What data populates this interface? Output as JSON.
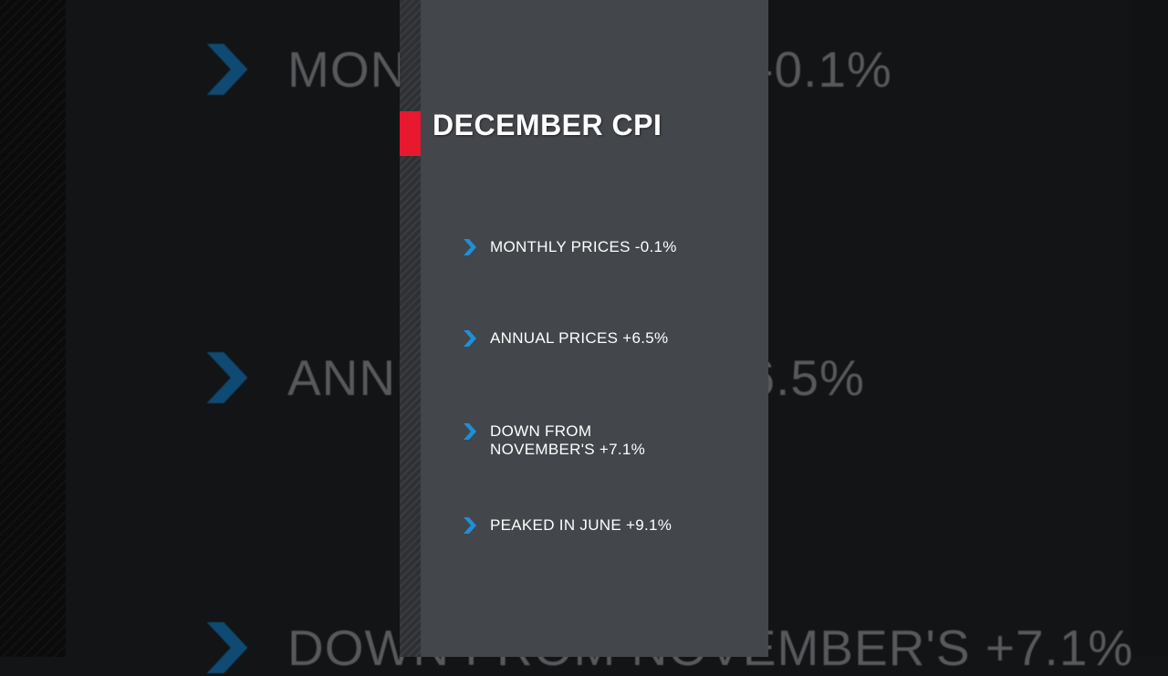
{
  "slide": {
    "title": "DECEMBER CPI",
    "bullets": [
      {
        "text": "MONTHLY PRICES -0.1%"
      },
      {
        "text": "ANNUAL PRICES +6.5%"
      },
      {
        "text": "DOWN FROM NOVEMBER'S +7.1%"
      },
      {
        "text": "PEAKED IN JUNE +9.1%"
      }
    ]
  },
  "colors": {
    "accent_red": "#e8192f",
    "chevron_blue": "#1e8fd8",
    "panel": "#43464b"
  }
}
